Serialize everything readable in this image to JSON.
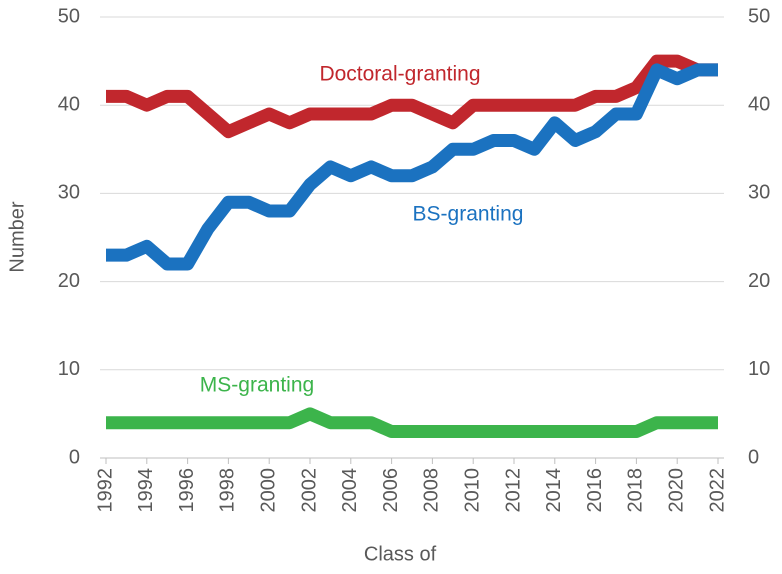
{
  "chart_data": {
    "type": "line",
    "xlabel": "Class of",
    "ylabel": "Number",
    "x": [
      1992,
      1993,
      1994,
      1995,
      1996,
      1997,
      1998,
      1999,
      2000,
      2001,
      2002,
      2003,
      2004,
      2005,
      2006,
      2007,
      2008,
      2009,
      2010,
      2011,
      2012,
      2013,
      2014,
      2015,
      2016,
      2017,
      2018,
      2019,
      2020,
      2021,
      2022
    ],
    "series": [
      {
        "name": "Doctoral-granting",
        "color": "#c1272d",
        "values": [
          41,
          41,
          40,
          41,
          41,
          39,
          37,
          38,
          39,
          38,
          39,
          39,
          39,
          39,
          40,
          40,
          39,
          38,
          40,
          40,
          40,
          40,
          40,
          40,
          41,
          41,
          42,
          45,
          45,
          44,
          44
        ]
      },
      {
        "name": "BS-granting",
        "color": "#1b72c0",
        "values": [
          23,
          23,
          24,
          22,
          22,
          26,
          29,
          29,
          28,
          28,
          31,
          33,
          32,
          33,
          32,
          32,
          33,
          35,
          35,
          36,
          36,
          35,
          38,
          36,
          37,
          39,
          39,
          44,
          43,
          44,
          44
        ]
      },
      {
        "name": "MS-granting",
        "color": "#3cb44b",
        "values": [
          4,
          4,
          4,
          4,
          4,
          4,
          4,
          4,
          4,
          4,
          5,
          4,
          4,
          4,
          3,
          3,
          3,
          3,
          3,
          3,
          3,
          3,
          3,
          3,
          3,
          3,
          3,
          4,
          4,
          4,
          4
        ]
      }
    ],
    "xlim": [
      1992,
      2022
    ],
    "xticks": [
      1992,
      1994,
      1996,
      1998,
      2000,
      2002,
      2004,
      2006,
      2008,
      2010,
      2012,
      2014,
      2016,
      2018,
      2020,
      2022
    ],
    "ylim": [
      0,
      50
    ],
    "yticks": [
      0,
      10,
      20,
      30,
      40,
      50
    ],
    "y2lim": [
      0,
      50
    ],
    "y2ticks": [
      0,
      10,
      20,
      30,
      40,
      50
    ],
    "grid": true
  }
}
